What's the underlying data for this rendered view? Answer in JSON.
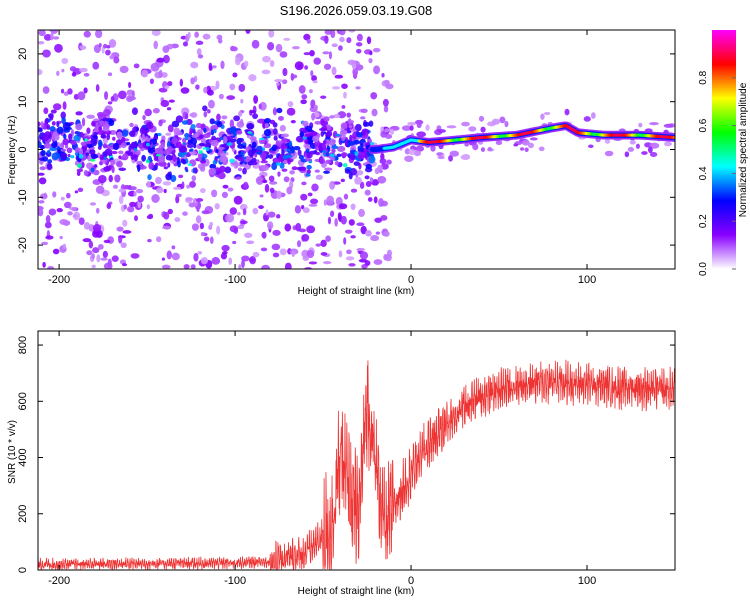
{
  "title": "S196.2026.059.03.19.G08",
  "chart_data": [
    {
      "type": "heatmap",
      "xlabel": "Height of straight line (km)",
      "ylabel": "Frequency (Hz)",
      "xlim": [
        -212,
        150
      ],
      "ylim": [
        -25,
        25
      ],
      "xticks": [
        -200,
        -100,
        0,
        100
      ],
      "yticks": [
        -20,
        -10,
        0,
        10,
        20
      ],
      "colorbar": {
        "label": "Normalized spectral amplitude",
        "range": [
          0,
          1
        ],
        "ticks": [
          "0.0",
          "0.2",
          "0.4",
          "0.6",
          "0.8"
        ],
        "colors": [
          "#ffffff",
          "#8800ff",
          "#0000ff",
          "#00ffff",
          "#00ff00",
          "#ffff00",
          "#ff0000",
          "#ff00ff"
        ]
      },
      "ridge": {
        "x": [
          -20,
          -10,
          0,
          10,
          20,
          40,
          60,
          80,
          88,
          95,
          110,
          130,
          150
        ],
        "freq": [
          0.0,
          0.5,
          2.0,
          1.5,
          1.8,
          2.5,
          3.0,
          4.5,
          5.0,
          3.5,
          3.0,
          3.0,
          2.5
        ]
      }
    },
    {
      "type": "line",
      "xlabel": "Height of straight line (km)",
      "ylabel": "SNR (10 * v/v)",
      "xlim": [
        -212,
        150
      ],
      "ylim": [
        0,
        850
      ],
      "xticks": [
        -200,
        -100,
        0,
        100
      ],
      "yticks": [
        0,
        200,
        400,
        600,
        800
      ],
      "color": "#ee3333",
      "envelope": {
        "x": [
          -212,
          -100,
          -80,
          -60,
          -45,
          -40,
          -35,
          -30,
          -25,
          -20,
          -15,
          -10,
          0,
          10,
          20,
          30,
          40,
          60,
          80,
          100,
          120,
          150
        ],
        "y": [
          20,
          25,
          30,
          60,
          150,
          420,
          280,
          180,
          600,
          380,
          150,
          220,
          350,
          450,
          520,
          580,
          620,
          660,
          670,
          660,
          650,
          640
        ]
      },
      "noise": [
        {
          "x_start": -212,
          "x_end": -80,
          "amp": 20
        },
        {
          "x_start": -80,
          "x_end": -50,
          "amp": 60
        },
        {
          "x_start": -50,
          "x_end": -25,
          "amp": 200
        },
        {
          "x_start": -25,
          "x_end": -10,
          "amp": 180
        },
        {
          "x_start": -10,
          "x_end": 20,
          "amp": 90
        },
        {
          "x_start": 20,
          "x_end": 150,
          "amp": 70
        }
      ]
    }
  ]
}
